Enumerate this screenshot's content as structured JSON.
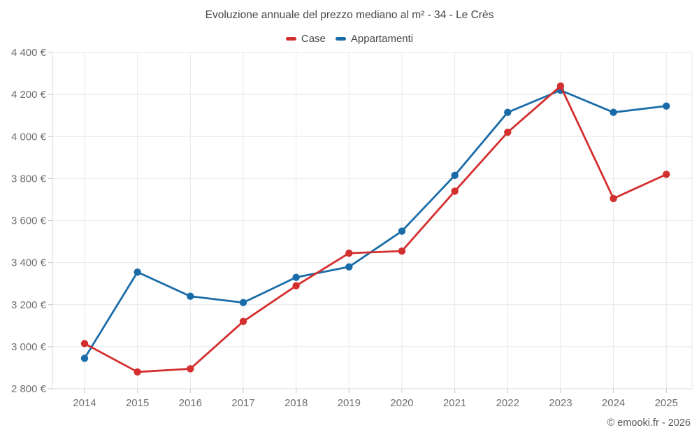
{
  "header": {
    "title": "Evoluzione annuale del prezzo mediano al m² - 34 - Le Crès"
  },
  "chart_data": {
    "type": "line",
    "title": "Evoluzione annuale del prezzo mediano al m² - 34 - Le Crès",
    "categories": [
      "2014",
      "2015",
      "2016",
      "2017",
      "2018",
      "2019",
      "2020",
      "2021",
      "2022",
      "2023",
      "2024",
      "2025"
    ],
    "series": [
      {
        "name": "Case",
        "color": "#d32f2f",
        "values": [
          3015,
          2880,
          2895,
          3120,
          3290,
          3445,
          3455,
          3740,
          4020,
          4240,
          3705,
          3820
        ]
      },
      {
        "name": "Appartamenti",
        "color": "#1a6ca8",
        "values": [
          2945,
          3355,
          3240,
          3210,
          3330,
          3380,
          3550,
          3815,
          4115,
          4220,
          4115,
          4145
        ]
      }
    ],
    "xlabel": "",
    "ylabel": "",
    "ylim": [
      2800,
      4400
    ],
    "ytick_step": 200,
    "ytick_labels": [
      "2 800 €",
      "3 000 €",
      "3 200 €",
      "3 400 €",
      "3 600 €",
      "3 800 €",
      "4 000 €",
      "4 200 €",
      "4 400 €"
    ],
    "grid": true,
    "legend_position": "top",
    "colors": {
      "grid_line": "#e8e8e8",
      "axis_line": "#d9d9d9",
      "tick_mark": "#c4c4c4",
      "tick_label": "#6f6f6f",
      "title_text": "#474747",
      "footer_text": "#55595e"
    }
  },
  "footer": {
    "credit": "© emooki.fr - 2026"
  }
}
